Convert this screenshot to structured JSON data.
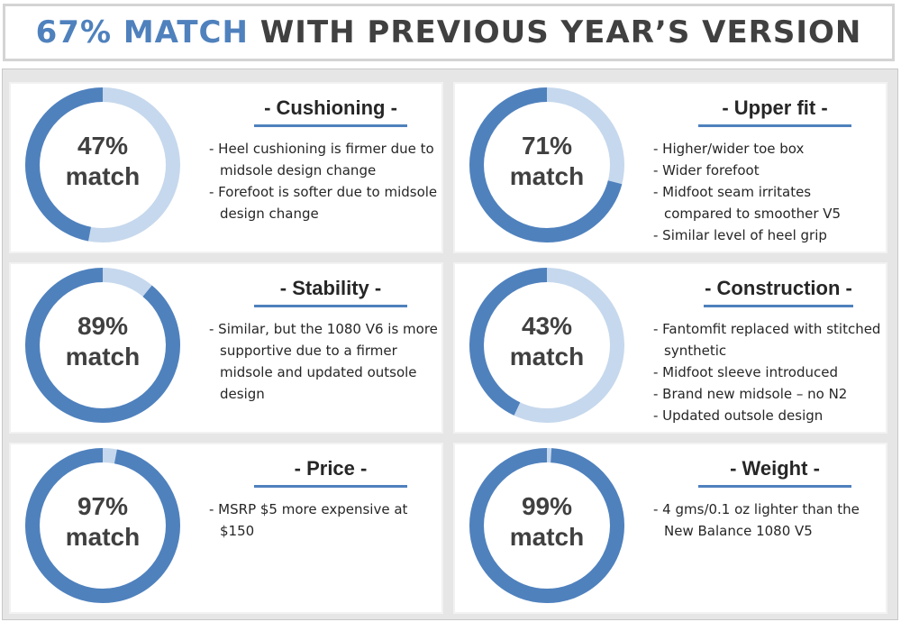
{
  "header": {
    "percent": "67% MATCH",
    "rest": "WITH PREVIOUS YEAR’S VERSION"
  },
  "colors": {
    "accent": "#4f81bd",
    "track": "#c6d8ed",
    "text": "#404040"
  },
  "cards": [
    {
      "title": "- Cushioning -",
      "match_value": 0.47,
      "match_percent": "47%",
      "match_word": "match",
      "bullets": [
        "- Heel cushioning is firmer due to midsole design change",
        "- Forefoot is softer due to midsole  design change"
      ]
    },
    {
      "title": "- Upper fit -",
      "match_value": 0.71,
      "match_percent": "71%",
      "match_word": "match",
      "bullets": [
        "- Higher/wider toe box",
        "- Wider forefoot",
        "- Midfoot seam irritates compared to smoother V5",
        "- Similar level of heel grip"
      ]
    },
    {
      "title": "- Stability -",
      "match_value": 0.89,
      "match_percent": "89%",
      "match_word": "match",
      "bullets": [
        "- Similar, but the 1080 V6 is more supportive due to a firmer midsole and updated outsole design"
      ]
    },
    {
      "title": "- Construction -",
      "match_value": 0.43,
      "match_percent": "43%",
      "match_word": "match",
      "bullets": [
        "- Fantomfit replaced with stitched synthetic",
        "- Midfoot sleeve introduced",
        "- Brand new midsole – no N2",
        "- Updated outsole design"
      ]
    },
    {
      "title": "- Price -",
      "match_value": 0.97,
      "match_percent": "97%",
      "match_word": "match",
      "bullets": [
        "-  MSRP $5 more expensive at $150"
      ]
    },
    {
      "title": "- Weight -",
      "match_value": 0.99,
      "match_percent": "99%",
      "match_word": "match",
      "bullets": [
        "- 4 gms/0.1 oz lighter than the New Balance 1080 V5"
      ]
    }
  ]
}
